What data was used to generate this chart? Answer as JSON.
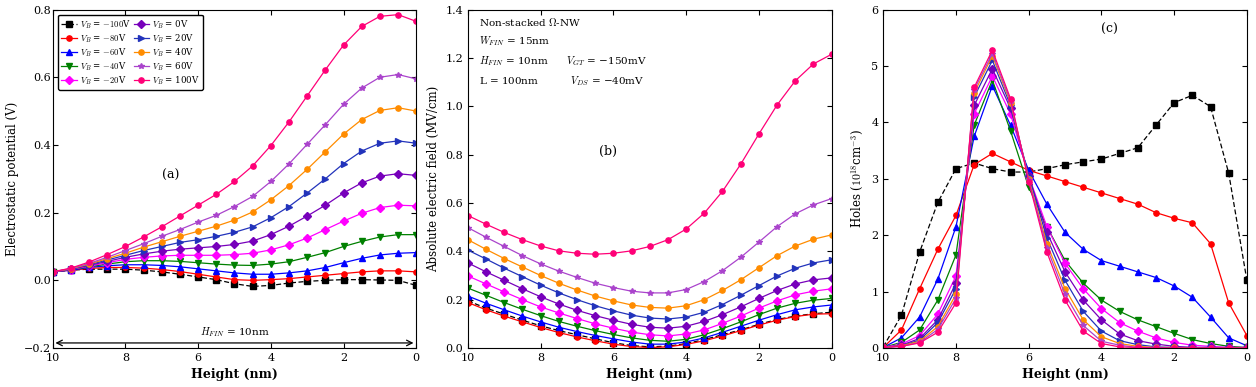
{
  "xlabel": "Height (nm)",
  "ylabel_a": "Electrostatic potential (V)",
  "ylabel_b": "Absolute electric field (MV/cm)",
  "ylabel_c": "Holes ($10^{18}$cm$^{-3}$)",
  "x": [
    10,
    9.5,
    9,
    8.5,
    8,
    7.5,
    7,
    6.5,
    6,
    5.5,
    5,
    4.5,
    4,
    3.5,
    3,
    2.5,
    2,
    1.5,
    1,
    0.5,
    0
  ],
  "vb_values": [
    -100,
    -80,
    -60,
    -40,
    -20,
    0,
    20,
    40,
    60,
    100
  ],
  "colors": [
    "black",
    "red",
    "blue",
    "green",
    "magenta",
    "#7700aa",
    "#2255cc",
    "orange",
    "#9933cc",
    "#ff1080"
  ],
  "markers": [
    "s",
    "o",
    "^",
    "v",
    "D",
    "D",
    ">",
    "o",
    "*",
    "o"
  ],
  "linestyles": [
    "dashed",
    "solid",
    "solid",
    "solid",
    "solid",
    "solid",
    "solid",
    "solid",
    "solid",
    "solid"
  ],
  "ylim_a": [
    -0.2,
    0.8
  ],
  "ylim_b": [
    0.0,
    1.4
  ],
  "ylim_c": [
    0,
    6
  ],
  "yticks_a": [
    -0.2,
    0.0,
    0.2,
    0.4,
    0.6,
    0.8
  ],
  "yticks_b": [
    0.0,
    0.2,
    0.4,
    0.6,
    0.8,
    1.0,
    1.2,
    1.4
  ],
  "yticks_c": [
    0,
    1,
    2,
    3,
    4,
    5,
    6
  ],
  "xticks": [
    10,
    8,
    6,
    4,
    2,
    0
  ],
  "pot_data": {
    "-100": [
      0.025,
      0.03,
      0.033,
      0.033,
      0.033,
      0.03,
      0.025,
      0.018,
      0.01,
      0.002,
      -0.01,
      -0.018,
      -0.015,
      -0.008,
      -0.003,
      0.0,
      0.002,
      0.002,
      0.001,
      0.0,
      -0.015
    ],
    "-80": [
      0.025,
      0.03,
      0.035,
      0.038,
      0.038,
      0.036,
      0.032,
      0.026,
      0.018,
      0.01,
      0.002,
      0.0,
      0.002,
      0.005,
      0.01,
      0.015,
      0.02,
      0.025,
      0.028,
      0.028,
      0.025
    ],
    "-60": [
      0.025,
      0.03,
      0.038,
      0.043,
      0.046,
      0.046,
      0.044,
      0.04,
      0.034,
      0.028,
      0.022,
      0.018,
      0.018,
      0.022,
      0.028,
      0.038,
      0.052,
      0.065,
      0.075,
      0.08,
      0.082
    ],
    "-40": [
      0.025,
      0.032,
      0.04,
      0.048,
      0.055,
      0.058,
      0.058,
      0.056,
      0.052,
      0.048,
      0.045,
      0.044,
      0.048,
      0.055,
      0.068,
      0.082,
      0.1,
      0.115,
      0.128,
      0.135,
      0.135
    ],
    "-20": [
      0.025,
      0.032,
      0.042,
      0.052,
      0.062,
      0.068,
      0.072,
      0.074,
      0.074,
      0.074,
      0.076,
      0.08,
      0.09,
      0.105,
      0.125,
      0.15,
      0.175,
      0.198,
      0.215,
      0.222,
      0.22
    ],
    "0": [
      0.025,
      0.033,
      0.044,
      0.056,
      0.068,
      0.078,
      0.086,
      0.092,
      0.096,
      0.1,
      0.106,
      0.116,
      0.135,
      0.16,
      0.19,
      0.222,
      0.258,
      0.288,
      0.308,
      0.315,
      0.31
    ],
    "20": [
      0.025,
      0.033,
      0.046,
      0.06,
      0.074,
      0.088,
      0.1,
      0.112,
      0.12,
      0.13,
      0.142,
      0.158,
      0.185,
      0.218,
      0.258,
      0.3,
      0.345,
      0.382,
      0.405,
      0.412,
      0.405
    ],
    "40": [
      0.025,
      0.034,
      0.048,
      0.064,
      0.08,
      0.098,
      0.114,
      0.13,
      0.145,
      0.16,
      0.178,
      0.202,
      0.238,
      0.28,
      0.328,
      0.38,
      0.432,
      0.475,
      0.502,
      0.51,
      0.5
    ],
    "60": [
      0.025,
      0.035,
      0.05,
      0.068,
      0.088,
      0.108,
      0.13,
      0.15,
      0.172,
      0.192,
      0.218,
      0.248,
      0.292,
      0.344,
      0.402,
      0.46,
      0.52,
      0.568,
      0.6,
      0.608,
      0.595
    ],
    "100": [
      0.025,
      0.036,
      0.054,
      0.076,
      0.1,
      0.128,
      0.158,
      0.19,
      0.222,
      0.254,
      0.292,
      0.338,
      0.398,
      0.468,
      0.545,
      0.622,
      0.695,
      0.75,
      0.78,
      0.785,
      0.765
    ]
  },
  "efield_data": {
    "-100": [
      0.195,
      0.165,
      0.14,
      0.115,
      0.092,
      0.072,
      0.055,
      0.038,
      0.022,
      0.01,
      0.005,
      0.008,
      0.018,
      0.035,
      0.055,
      0.075,
      0.098,
      0.118,
      0.132,
      0.142,
      0.148
    ],
    "-80": [
      0.188,
      0.158,
      0.132,
      0.108,
      0.085,
      0.064,
      0.046,
      0.03,
      0.016,
      0.006,
      0.002,
      0.005,
      0.015,
      0.03,
      0.05,
      0.072,
      0.095,
      0.115,
      0.13,
      0.14,
      0.142
    ],
    "-60": [
      0.215,
      0.185,
      0.158,
      0.132,
      0.108,
      0.086,
      0.068,
      0.052,
      0.038,
      0.025,
      0.016,
      0.016,
      0.025,
      0.042,
      0.065,
      0.09,
      0.115,
      0.138,
      0.158,
      0.17,
      0.178
    ],
    "-40": [
      0.248,
      0.218,
      0.188,
      0.16,
      0.134,
      0.11,
      0.09,
      0.072,
      0.056,
      0.042,
      0.032,
      0.028,
      0.036,
      0.055,
      0.08,
      0.108,
      0.138,
      0.165,
      0.185,
      0.198,
      0.205
    ],
    "-20": [
      0.298,
      0.265,
      0.232,
      0.2,
      0.17,
      0.145,
      0.122,
      0.1,
      0.082,
      0.066,
      0.055,
      0.05,
      0.058,
      0.075,
      0.102,
      0.132,
      0.165,
      0.195,
      0.22,
      0.235,
      0.245
    ],
    "0": [
      0.352,
      0.315,
      0.28,
      0.245,
      0.212,
      0.182,
      0.156,
      0.134,
      0.115,
      0.098,
      0.086,
      0.082,
      0.09,
      0.11,
      0.138,
      0.17,
      0.205,
      0.238,
      0.265,
      0.282,
      0.29
    ],
    "20": [
      0.405,
      0.368,
      0.33,
      0.295,
      0.26,
      0.228,
      0.2,
      0.175,
      0.154,
      0.136,
      0.124,
      0.12,
      0.128,
      0.148,
      0.18,
      0.218,
      0.258,
      0.298,
      0.33,
      0.352,
      0.365
    ],
    "40": [
      0.448,
      0.408,
      0.37,
      0.335,
      0.3,
      0.268,
      0.24,
      0.215,
      0.195,
      0.178,
      0.168,
      0.165,
      0.175,
      0.2,
      0.238,
      0.282,
      0.332,
      0.382,
      0.422,
      0.45,
      0.468
    ],
    "60": [
      0.498,
      0.458,
      0.42,
      0.382,
      0.348,
      0.318,
      0.292,
      0.268,
      0.25,
      0.235,
      0.228,
      0.228,
      0.242,
      0.275,
      0.32,
      0.375,
      0.438,
      0.502,
      0.555,
      0.592,
      0.618
    ],
    "100": [
      0.548,
      0.512,
      0.478,
      0.448,
      0.422,
      0.402,
      0.392,
      0.388,
      0.392,
      0.402,
      0.42,
      0.448,
      0.492,
      0.558,
      0.648,
      0.76,
      0.885,
      1.005,
      1.105,
      1.175,
      1.215
    ]
  },
  "holes_data": {
    "-100": [
      0.02,
      0.58,
      1.7,
      2.58,
      3.18,
      3.28,
      3.18,
      3.12,
      3.12,
      3.18,
      3.25,
      3.3,
      3.35,
      3.45,
      3.55,
      3.95,
      4.35,
      4.48,
      4.28,
      3.1,
      1.2
    ],
    "-80": [
      0.01,
      0.32,
      1.05,
      1.75,
      2.35,
      3.25,
      3.45,
      3.3,
      3.15,
      3.05,
      2.95,
      2.85,
      2.75,
      2.65,
      2.55,
      2.4,
      2.3,
      2.22,
      1.85,
      0.8,
      0.22
    ],
    "-60": [
      0.01,
      0.18,
      0.55,
      1.22,
      2.15,
      3.75,
      4.65,
      3.95,
      3.15,
      2.55,
      2.05,
      1.75,
      1.55,
      1.45,
      1.35,
      1.25,
      1.1,
      0.9,
      0.55,
      0.18,
      0.04
    ],
    "-40": [
      0.01,
      0.1,
      0.32,
      0.85,
      1.65,
      3.95,
      4.75,
      3.85,
      2.85,
      2.15,
      1.55,
      1.15,
      0.85,
      0.65,
      0.5,
      0.38,
      0.26,
      0.15,
      0.08,
      0.03,
      0.01
    ],
    "-20": [
      0.01,
      0.07,
      0.22,
      0.6,
      1.28,
      4.15,
      4.82,
      4.15,
      3.05,
      2.15,
      1.5,
      1.05,
      0.7,
      0.45,
      0.3,
      0.18,
      0.1,
      0.05,
      0.03,
      0.01,
      0.01
    ],
    "0": [
      0.01,
      0.05,
      0.17,
      0.5,
      1.15,
      4.3,
      4.95,
      4.25,
      3.05,
      2.05,
      1.35,
      0.85,
      0.5,
      0.25,
      0.13,
      0.07,
      0.03,
      0.01,
      0.01,
      0.01,
      0.0
    ],
    "20": [
      0.01,
      0.04,
      0.14,
      0.45,
      1.05,
      4.45,
      5.1,
      4.3,
      3.05,
      1.95,
      1.2,
      0.65,
      0.3,
      0.13,
      0.06,
      0.02,
      0.01,
      0.01,
      0.01,
      0.0,
      0.0
    ],
    "40": [
      0.01,
      0.04,
      0.12,
      0.38,
      0.95,
      4.52,
      5.18,
      4.35,
      3.0,
      1.85,
      1.05,
      0.5,
      0.2,
      0.08,
      0.03,
      0.01,
      0.01,
      0.0,
      0.0,
      0.0,
      0.0
    ],
    "60": [
      0.01,
      0.03,
      0.1,
      0.33,
      0.88,
      4.58,
      5.22,
      4.38,
      2.98,
      1.78,
      0.95,
      0.4,
      0.12,
      0.05,
      0.01,
      0.01,
      0.0,
      0.0,
      0.0,
      0.0,
      0.0
    ],
    "100": [
      0.01,
      0.03,
      0.09,
      0.28,
      0.8,
      4.62,
      5.28,
      4.42,
      2.95,
      1.7,
      0.85,
      0.3,
      0.08,
      0.02,
      0.01,
      0.0,
      0.0,
      0.0,
      0.0,
      0.0,
      0.0
    ]
  },
  "figsize": [
    12.56,
    3.87
  ],
  "dpi": 100
}
